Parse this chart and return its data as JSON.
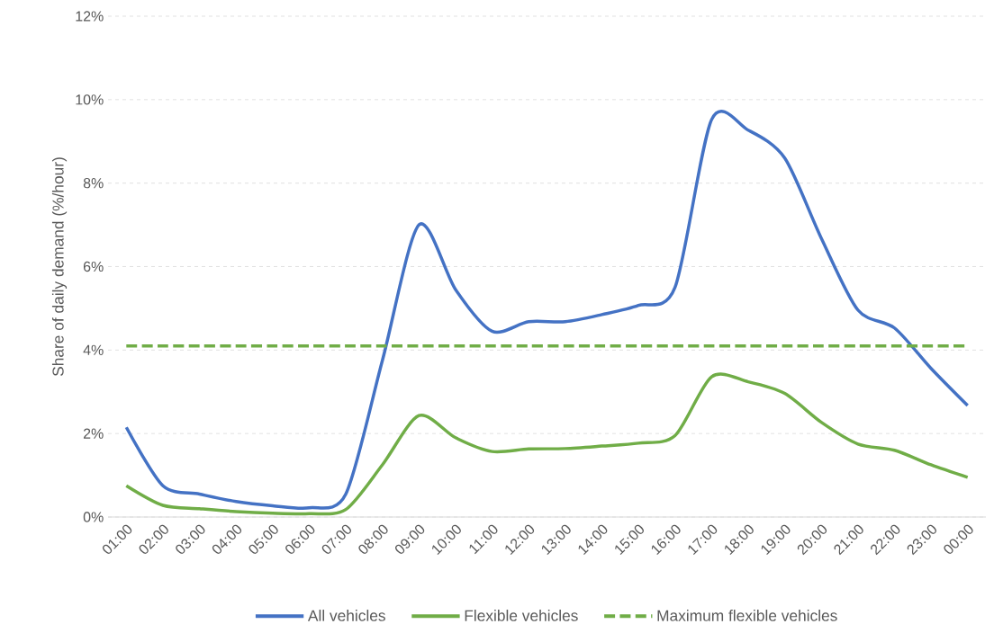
{
  "chart_data": {
    "type": "line",
    "ylabel": "Share of daily demand (%/hour)",
    "categories": [
      "01:00",
      "02:00",
      "03:00",
      "04:00",
      "05:00",
      "06:00",
      "07:00",
      "08:00",
      "09:00",
      "10:00",
      "11:00",
      "12:00",
      "13:00",
      "14:00",
      "15:00",
      "16:00",
      "17:00",
      "18:00",
      "19:00",
      "20:00",
      "21:00",
      "22:00",
      "23:00",
      "00:00"
    ],
    "series": [
      {
        "name": "All vehicles",
        "color": "#4472c4",
        "line_style": "solid",
        "values": [
          2.15,
          0.75,
          0.55,
          0.37,
          0.27,
          0.22,
          0.55,
          3.75,
          7.0,
          5.45,
          4.45,
          4.68,
          4.68,
          4.85,
          5.07,
          5.5,
          9.52,
          9.27,
          8.6,
          6.68,
          4.96,
          4.53,
          3.56,
          2.67
        ]
      },
      {
        "name": "Flexible vehicles",
        "color": "#70ad47",
        "line_style": "solid",
        "values": [
          0.75,
          0.28,
          0.2,
          0.13,
          0.09,
          0.08,
          0.18,
          1.25,
          2.43,
          1.9,
          1.57,
          1.63,
          1.64,
          1.7,
          1.77,
          1.95,
          3.36,
          3.24,
          2.96,
          2.27,
          1.75,
          1.6,
          1.25,
          0.95
        ]
      },
      {
        "name": "Maximum flexible vehicles",
        "color": "#70ad47",
        "line_style": "dashed",
        "values": [
          4.1,
          4.1,
          4.1,
          4.1,
          4.1,
          4.1,
          4.1,
          4.1,
          4.1,
          4.1,
          4.1,
          4.1,
          4.1,
          4.1,
          4.1,
          4.1,
          4.1,
          4.1,
          4.1,
          4.1,
          4.1,
          4.1,
          4.1,
          4.1
        ]
      }
    ],
    "ylim": [
      0,
      12
    ],
    "yticks": [
      {
        "value": 0,
        "label": "0%"
      },
      {
        "value": 2,
        "label": "2%"
      },
      {
        "value": 4,
        "label": "4%"
      },
      {
        "value": 6,
        "label": "6%"
      },
      {
        "value": 8,
        "label": "8%"
      },
      {
        "value": 10,
        "label": "10%"
      },
      {
        "value": 12,
        "label": "12%"
      }
    ],
    "grid": "y",
    "legend": "bottom",
    "marker": "none"
  }
}
